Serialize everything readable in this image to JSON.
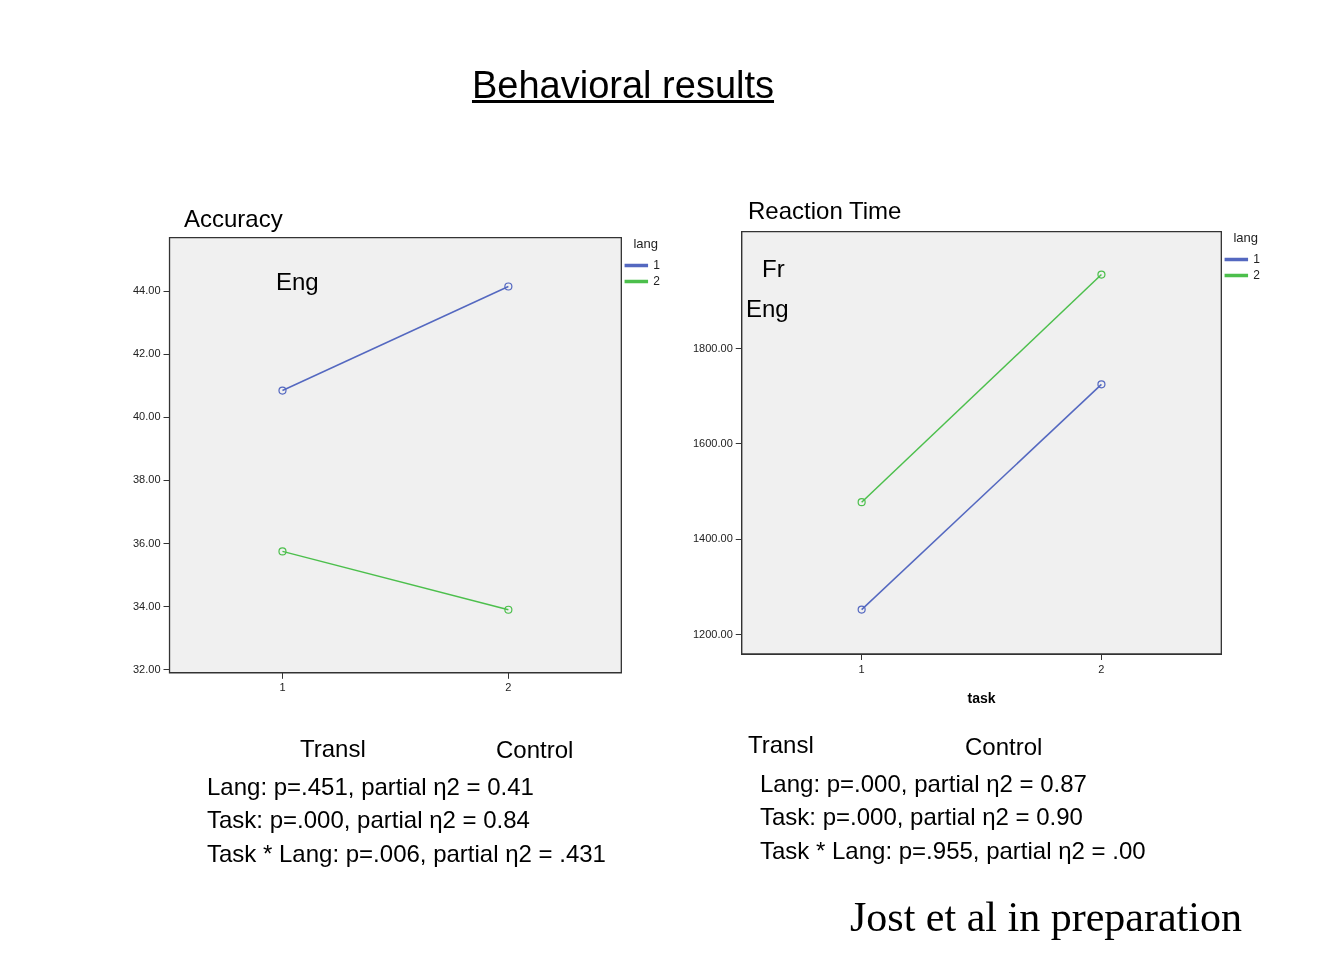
{
  "chart_data": [
    {
      "type": "line",
      "title": "Accuracy",
      "categories": [
        "1",
        "2"
      ],
      "ylim": [
        31.9,
        45.7
      ],
      "yticks": [
        {
          "value": 32,
          "label": "32.00"
        },
        {
          "value": 34,
          "label": "34.00"
        },
        {
          "value": 36,
          "label": "36.00"
        },
        {
          "value": 38,
          "label": "38.00"
        },
        {
          "value": 40,
          "label": "40.00"
        },
        {
          "value": 42,
          "label": "42.00"
        },
        {
          "value": 44,
          "label": "44.00"
        }
      ],
      "series": [
        {
          "name": "1",
          "color": "#5468c0",
          "values": [
            40.85,
            44.15
          ]
        },
        {
          "name": "2",
          "color": "#4cbf4c",
          "values": [
            35.75,
            33.9
          ]
        }
      ],
      "legend_title": "lang",
      "legend": "top right",
      "marker": "circle",
      "grid": false,
      "annotations": [
        "Eng",
        "Behavioral results",
        "Transl",
        "Control",
        "Lang: p=.451, partial η2 = 0.41",
        "Task: p=.000, partial η2 = 0.84",
        "Task * Lang: p=.006, partial η2 = .431"
      ]
    },
    {
      "type": "line",
      "title": "Reaction Time",
      "xlabel": "task",
      "categories": [
        "1",
        "2"
      ],
      "ylim": [
        1160,
        2045
      ],
      "yticks": [
        {
          "value": 1200,
          "label": "1200.00"
        },
        {
          "value": 1400,
          "label": "1400.00"
        },
        {
          "value": 1600,
          "label": "1600.00"
        },
        {
          "value": 1800,
          "label": "1800.00"
        }
      ],
      "series": [
        {
          "name": "1",
          "color": "#5468c0",
          "values": [
            1253,
            1725
          ]
        },
        {
          "name": "2",
          "color": "#4cbf4c",
          "values": [
            1478,
            1955
          ]
        }
      ],
      "legend_title": "lang",
      "legend": "top right",
      "marker": "circle",
      "grid": false,
      "annotations": [
        "Fr",
        "Eng",
        "Transl",
        "Control",
        "Lang: p=.000, partial η2 = 0.87",
        "Task: p=.000, partial η2 = 0.90",
        "Task * Lang: p=.955, partial η2 = .00",
        "Jost et al in preparation"
      ]
    }
  ]
}
